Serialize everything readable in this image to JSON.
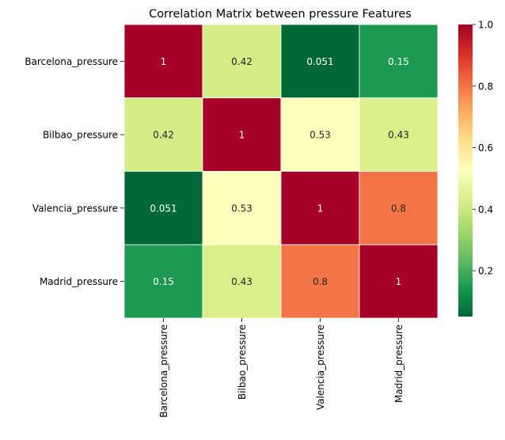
{
  "chart_data": {
    "type": "heatmap",
    "title": "Correlation Matrix between pressure Features",
    "rows": [
      "Barcelona_pressure",
      "Bilbao_pressure",
      "Valencia_pressure",
      "Madrid_pressure"
    ],
    "columns": [
      "Barcelona_pressure",
      "Bilbao_pressure",
      "Valencia_pressure",
      "Madrid_pressure"
    ],
    "values": [
      [
        1,
        0.42,
        0.051,
        0.15
      ],
      [
        0.42,
        1,
        0.53,
        0.43
      ],
      [
        0.051,
        0.53,
        1,
        0.8
      ],
      [
        0.15,
        0.43,
        0.8,
        1
      ]
    ],
    "cell_labels": [
      [
        "1",
        "0.42",
        "0.051",
        "0.15"
      ],
      [
        "0.42",
        "1",
        "0.53",
        "0.43"
      ],
      [
        "0.051",
        "0.53",
        "1",
        "0.8"
      ],
      [
        "0.15",
        "0.43",
        "0.8",
        "1"
      ]
    ],
    "colormap": "RdYlGn_r",
    "colorbar": {
      "range": [
        0.051,
        1.0
      ],
      "ticks": [
        0.2,
        0.4,
        0.6,
        0.8,
        1.0
      ],
      "tick_labels": [
        "0.2",
        "0.4",
        "0.6",
        "0.8",
        "1.0"
      ]
    },
    "cell_border_color": "#ffffff"
  }
}
